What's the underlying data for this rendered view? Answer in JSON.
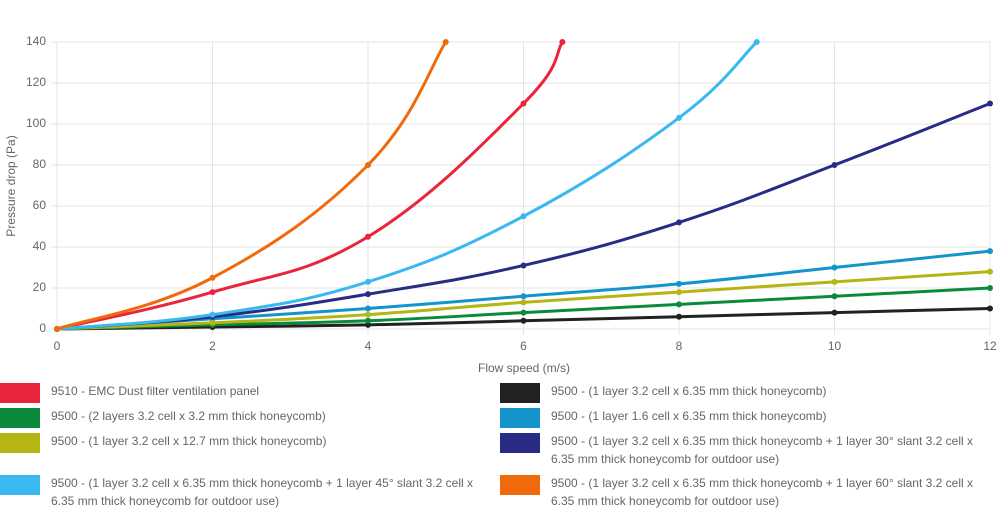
{
  "chart_data": {
    "type": "line",
    "x_label": "Flow speed (m/s)",
    "y_label": "Pressure drop (Pa)",
    "xlim": [
      0,
      12
    ],
    "xticks": [
      0,
      2,
      4,
      6,
      8,
      10,
      12
    ],
    "ylim": [
      0,
      140
    ],
    "yticks": [
      0,
      20,
      40,
      60,
      80,
      100,
      120,
      140
    ],
    "grid": true,
    "series": [
      {
        "name": "9510 - EMC Dust filter ventilation panel",
        "color": "#e8253a",
        "x": [
          0,
          2,
          4,
          6,
          6.5
        ],
        "values": [
          0,
          18,
          45,
          110,
          140
        ]
      },
      {
        "name": "9500 - (1 layer 3.2 cell x 6.35 mm thick honeycomb)",
        "color": "#222222",
        "x": [
          0,
          2,
          4,
          6,
          8,
          10,
          12
        ],
        "values": [
          0,
          1,
          2,
          4,
          6,
          8,
          10
        ]
      },
      {
        "name": "9500 - (2 layers 3.2 cell x 3.2 mm thick honeycomb)",
        "color": "#0a8a3a",
        "x": [
          0,
          2,
          4,
          6,
          8,
          10,
          12
        ],
        "values": [
          0,
          2,
          4,
          8,
          12,
          16,
          20
        ]
      },
      {
        "name": "9500 - (1 layer 1.6 cell x 6.35 mm thick honeycomb)",
        "color": "#1395cc",
        "x": [
          0,
          2,
          4,
          6,
          8,
          10,
          12
        ],
        "values": [
          0,
          5,
          10,
          16,
          22,
          30,
          38
        ]
      },
      {
        "name": "9500 - (1 layer 3.2 cell x 12.7 mm thick honeycomb)",
        "color": "#b5b513",
        "x": [
          0,
          2,
          4,
          6,
          8,
          10,
          12
        ],
        "values": [
          0,
          3,
          7,
          13,
          18,
          23,
          28
        ]
      },
      {
        "name": "9500 - (1 layer 3.2 cell x 6.35 mm thick honeycomb + 1 layer 30° slant 3.2 cell x 6.35 mm thick honeycomb for outdoor use)",
        "color": "#282c84",
        "x": [
          0,
          2,
          4,
          6,
          8,
          10,
          12
        ],
        "values": [
          0,
          6,
          17,
          31,
          52,
          80,
          110
        ]
      },
      {
        "name": "9500 - (1 layer 3.2 cell x 6.35 mm thick honeycomb + 1 layer 45° slant 3.2 cell x 6.35 mm thick honeycomb for outdoor use)",
        "color": "#3ab8f0",
        "x": [
          0,
          2,
          4,
          6,
          8,
          9
        ],
        "values": [
          0,
          7,
          23,
          55,
          103,
          140
        ]
      },
      {
        "name": "9500 - (1 layer 3.2 cell x 6.35 mm thick honeycomb + 1 layer 60° slant 3.2 cell x 6.35 mm thick honeycomb for outdoor use)",
        "color": "#f06a0c",
        "x": [
          0,
          2,
          4,
          5
        ],
        "values": [
          0,
          25,
          80,
          140
        ]
      }
    ]
  }
}
